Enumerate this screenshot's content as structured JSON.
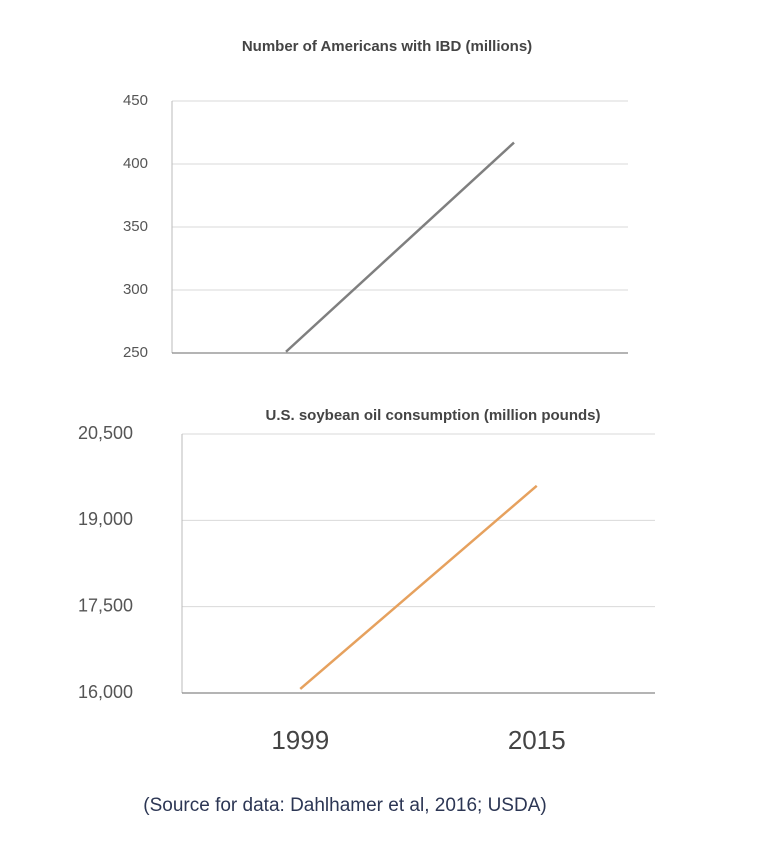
{
  "chart_data": [
    {
      "type": "line",
      "title": "Number of Americans with IBD (millions)",
      "categories": [
        null,
        null
      ],
      "series": [
        {
          "color": "#7f7f7f",
          "values": [
            251,
            417
          ]
        }
      ],
      "ylim": [
        250,
        450
      ],
      "yticks": [
        250,
        300,
        350,
        400,
        450
      ],
      "grid": true
    },
    {
      "type": "line",
      "title": "U.S. soybean oil consumption (million pounds)",
      "categories": [
        "1999",
        "2015"
      ],
      "series": [
        {
          "color": "#e6a15e",
          "values": [
            16070,
            19600
          ]
        }
      ],
      "ylim": [
        16000,
        20500
      ],
      "yticks": [
        {
          "value": 16000,
          "label": "16,000"
        },
        {
          "value": 17500,
          "label": "17,500"
        },
        {
          "value": 19000,
          "label": "19,000"
        },
        {
          "value": 20500,
          "label": "20,500"
        }
      ],
      "grid": true
    }
  ],
  "source": "(Source for data: Dahlhamer et al, 2016; USDA)"
}
